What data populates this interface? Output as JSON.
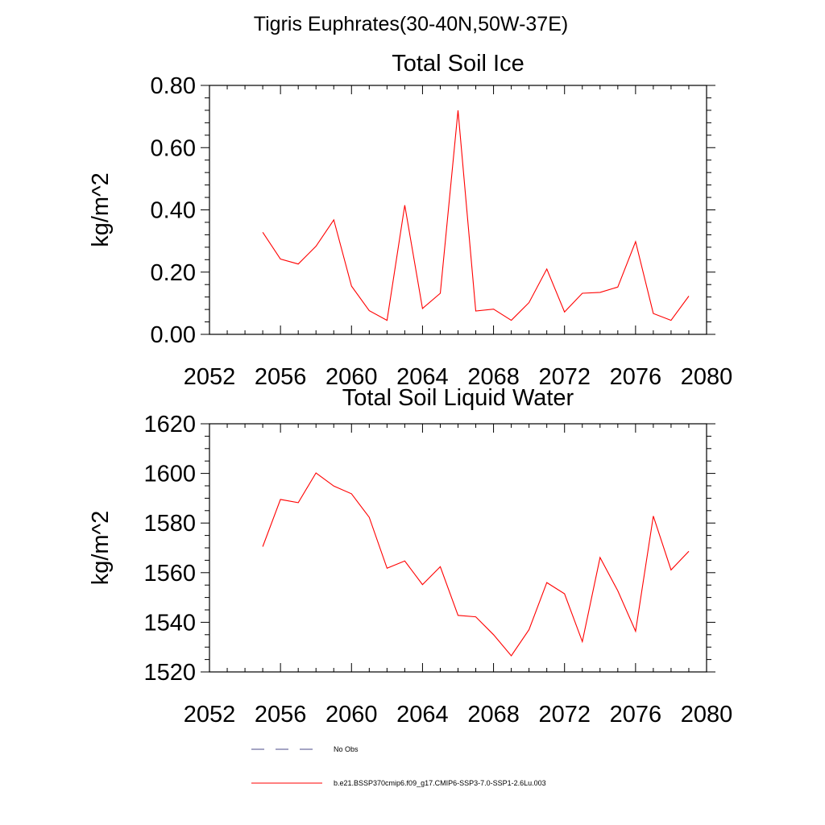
{
  "figure": {
    "suptitle": "Tigris Euphrates(30-40N,50W-37E)",
    "legend": {
      "placement": "bottom",
      "items": [
        {
          "label": "No Obs",
          "style": "dashed",
          "color": "#4a4a8a"
        },
        {
          "label": "b.e21.BSSP370cmip6.f09_g17.CMIP6-SSP3-7.0-SSP1-2.6Lu.003",
          "style": "solid",
          "color": "#ff0000"
        }
      ]
    }
  },
  "chart_data": [
    {
      "type": "line",
      "title": "Total Soil Ice",
      "xlabel": "",
      "ylabel": "kg/m^2",
      "xlim": [
        2052,
        2080
      ],
      "ylim": [
        0,
        0.8
      ],
      "xticks": [
        "2052",
        "2056",
        "2060",
        "2064",
        "2068",
        "2072",
        "2076",
        "2080"
      ],
      "yticks": [
        "0.00",
        "0.20",
        "0.40",
        "0.60",
        "0.80"
      ],
      "grid": false,
      "series": [
        {
          "color": "#ff0000",
          "x": [
            2055,
            2056,
            2057,
            2058,
            2059,
            2060,
            2061,
            2062,
            2063,
            2064,
            2065,
            2066,
            2067,
            2068,
            2069,
            2070,
            2071,
            2072,
            2073,
            2074,
            2075,
            2076,
            2077,
            2078,
            2079
          ],
          "y": [
            0.328,
            0.242,
            0.226,
            0.283,
            0.368,
            0.155,
            0.076,
            0.045,
            0.415,
            0.083,
            0.132,
            0.72,
            0.075,
            0.081,
            0.045,
            0.102,
            0.21,
            0.072,
            0.132,
            0.135,
            0.152,
            0.298,
            0.067,
            0.045,
            0.123
          ]
        }
      ]
    },
    {
      "type": "line",
      "title": "Total Soil Liquid Water",
      "xlabel": "",
      "ylabel": "kg/m^2",
      "xlim": [
        2052,
        2080
      ],
      "ylim": [
        1520,
        1620
      ],
      "xticks": [
        "2052",
        "2056",
        "2060",
        "2064",
        "2068",
        "2072",
        "2076",
        "2080"
      ],
      "yticks": [
        "1520",
        "1540",
        "1560",
        "1580",
        "1600",
        "1620"
      ],
      "grid": false,
      "series": [
        {
          "color": "#ff0000",
          "x": [
            2055,
            2056,
            2057,
            2058,
            2059,
            2060,
            2061,
            2062,
            2063,
            2064,
            2065,
            2066,
            2067,
            2068,
            2069,
            2070,
            2071,
            2072,
            2073,
            2074,
            2075,
            2076,
            2077,
            2078,
            2079
          ],
          "y": [
            1570.5,
            1589.5,
            1588.2,
            1600.2,
            1594.9,
            1591.8,
            1582.3,
            1561.8,
            1564.7,
            1555.2,
            1562.4,
            1542.8,
            1542.2,
            1535.0,
            1526.5,
            1537.0,
            1556.0,
            1551.5,
            1532.2,
            1566.1,
            1552.7,
            1536.4,
            1582.8,
            1561.1,
            1568.6
          ]
        }
      ]
    }
  ]
}
